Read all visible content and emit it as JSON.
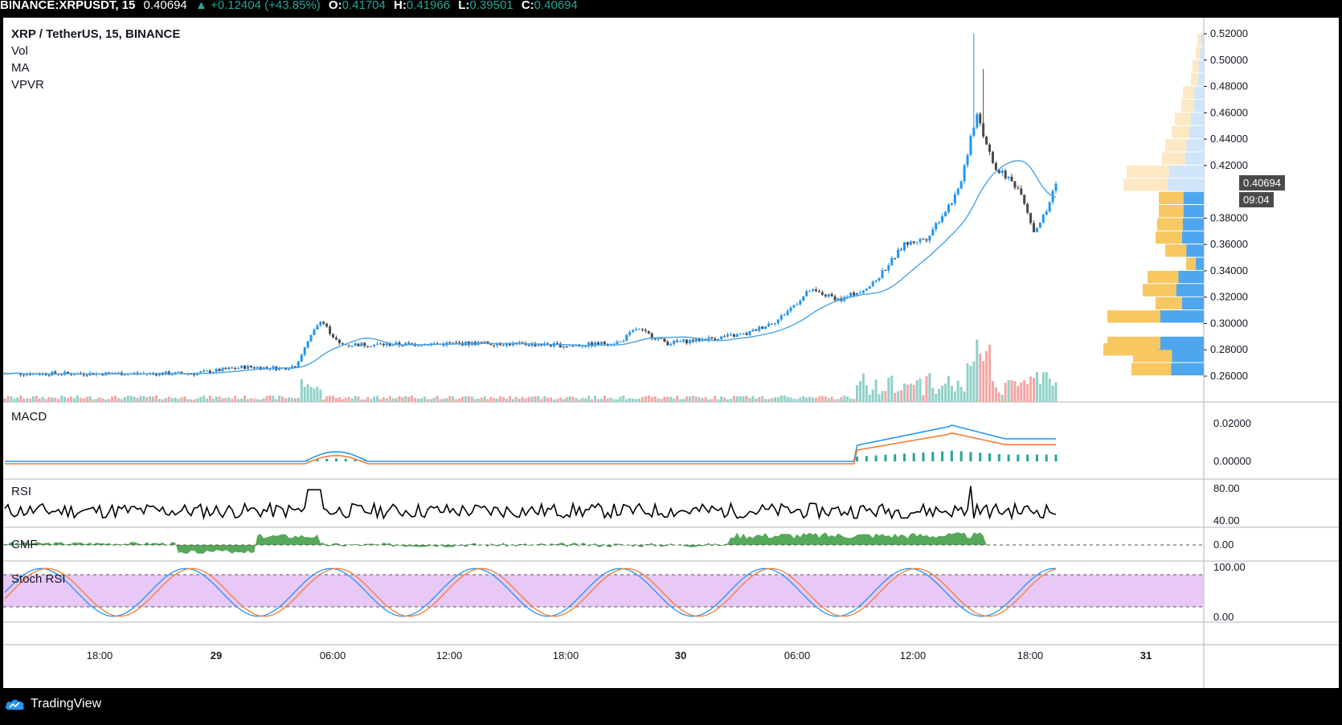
{
  "header": {
    "symbol_full": "BINANCE:XRPUSDT, 15",
    "last": "0.40694",
    "change": "▲ +0.12404 (+43.85%)",
    "o_label": "O:",
    "o": "0.41704",
    "h_label": "H:",
    "h": "0.41966",
    "l_label": "L:",
    "l": "0.39501",
    "c_label": "C:",
    "c": "0.40694"
  },
  "legend": {
    "title": "XRP / TetherUS, 15, BINANCE",
    "indicators": [
      "Vol",
      "MA",
      "VPVR"
    ]
  },
  "panes": {
    "macd": "MACD",
    "rsi": "RSI",
    "cmf": "CMF",
    "stoch": "Stoch RSI"
  },
  "price_axis": {
    "ticks": [
      "0.52000",
      "0.50000",
      "0.48000",
      "0.46000",
      "0.44000",
      "0.42000",
      "0.38000",
      "0.36000",
      "0.34000",
      "0.32000",
      "0.30000",
      "0.28000",
      "0.26000"
    ],
    "current_price": "0.40694",
    "countdown": "09:04"
  },
  "macd_axis": [
    "0.02000",
    "0.00000"
  ],
  "rsi_axis": [
    "80.00",
    "40.00"
  ],
  "cmf_axis": [
    "0.00"
  ],
  "stoch_axis": [
    "100.00",
    "0.00"
  ],
  "time_axis": [
    "18:00",
    "29",
    "06:00",
    "12:00",
    "18:00",
    "30",
    "06:00",
    "12:00",
    "18:00",
    "31"
  ],
  "footer": {
    "brand": "TradingView"
  },
  "colors": {
    "up": "#26a69a",
    "down": "#ef5350",
    "candle_up": "#2196f3",
    "candle_down": "#4a4a4a",
    "ma": "#4aa3e8",
    "vpvr_up": "#4ea6ee",
    "vpvr_down": "#f7c862",
    "macd": "#2196f3",
    "signal": "#f57c33",
    "cmf": "#43a047",
    "stoch_band": "#e8c8f7"
  }
}
